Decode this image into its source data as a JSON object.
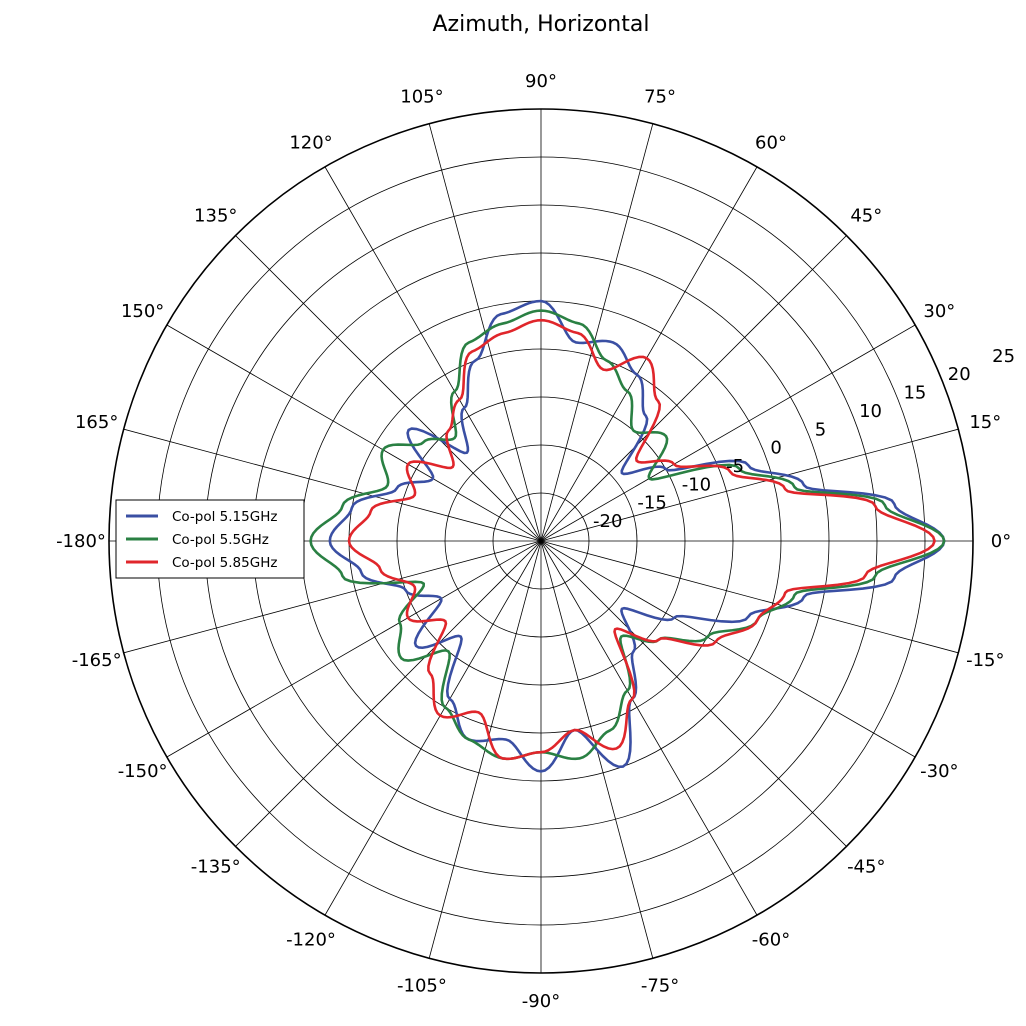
{
  "chart_data": {
    "type": "line",
    "subtype": "polar",
    "title": "Azimuth, Horizontal",
    "xlabel": "",
    "ylabel": "",
    "theta_unit": "degrees",
    "theta_ticks": [
      0,
      15,
      30,
      45,
      60,
      75,
      90,
      105,
      120,
      135,
      150,
      165,
      180,
      -165,
      -150,
      -135,
      -120,
      -105,
      -90,
      -75,
      -60,
      -45,
      -30,
      -15
    ],
    "theta_tick_labels": [
      "0°",
      "15°",
      "30°",
      "45°",
      "60°",
      "75°",
      "90°",
      "105°",
      "120°",
      "135°",
      "150°",
      "165°",
      "-180°",
      "-165°",
      "-150°",
      "-135°",
      "-120°",
      "-105°",
      "-90°",
      "-75°",
      "-60°",
      "-45°",
      "-30°",
      "-15°"
    ],
    "r_ticks": [
      -20,
      -15,
      -10,
      -5,
      0,
      5,
      10,
      15,
      20,
      25
    ],
    "r_tick_labels": [
      "-20",
      "-15",
      "-10",
      "-5",
      "0",
      "5",
      "10",
      "15",
      "20",
      "25"
    ],
    "rlim": [
      -25,
      20
    ],
    "r_grid_extra": [
      -25,
      -20,
      -15,
      -10,
      -5,
      0,
      5,
      10,
      15,
      20
    ],
    "r_label_angle": 22.5,
    "grid": true,
    "legend_position": "left",
    "series": [
      {
        "name": "Co-pol 5.15GHz",
        "color": "#3a4fa3",
        "theta": [
          -180,
          -170,
          -160,
          -150,
          -140,
          -130,
          -120,
          -110,
          -100,
          -90,
          -80,
          -70,
          -60,
          -50,
          -40,
          -30,
          -20,
          -12,
          -6,
          0,
          6,
          12,
          20,
          30,
          40,
          50,
          60,
          70,
          80,
          90,
          100,
          110,
          120,
          130,
          140,
          150,
          160,
          170,
          180
        ],
        "r": [
          -3,
          -6,
          -10,
          -13,
          -8,
          -12,
          -6,
          -3,
          -4,
          -1,
          -5,
          0,
          -6,
          -10,
          -14,
          -9,
          -2,
          3,
          12,
          17,
          12,
          3,
          -2,
          -10,
          -14,
          -8,
          -5,
          -3,
          -4,
          0,
          -1,
          -5,
          -9,
          -13,
          -7,
          -12,
          -9,
          -5,
          -3
        ]
      },
      {
        "name": "Co-pol 5.5GHz",
        "color": "#2a8043",
        "theta": [
          -180,
          -170,
          -160,
          -150,
          -140,
          -130,
          -120,
          -110,
          -100,
          -90,
          -80,
          -70,
          -60,
          -50,
          -40,
          -30,
          -20,
          -12,
          -6,
          0,
          6,
          12,
          20,
          30,
          40,
          50,
          60,
          70,
          80,
          90,
          100,
          110,
          120,
          130,
          140,
          150,
          160,
          170,
          180
        ],
        "r": [
          -1,
          -4,
          -12,
          -8,
          -6,
          -10,
          -5,
          -3,
          -2,
          -3,
          -2,
          -4,
          -7,
          -12,
          -9,
          -5,
          -1,
          2,
          10,
          17,
          11,
          2,
          -3,
          -12,
          -8,
          -10,
          -7,
          -5,
          -2,
          -1,
          -2,
          -3,
          -7,
          -11,
          -9,
          -6,
          -8,
          -4,
          -1
        ]
      },
      {
        "name": "Co-pol 5.85GHz",
        "color": "#e0262b",
        "theta": [
          -180,
          -170,
          -160,
          -150,
          -140,
          -130,
          -120,
          -110,
          -100,
          -90,
          -80,
          -70,
          -60,
          -50,
          -40,
          -30,
          -20,
          -12,
          -6,
          0,
          6,
          12,
          20,
          30,
          40,
          50,
          60,
          70,
          80,
          90,
          100,
          110,
          120,
          130,
          140,
          150,
          160,
          170,
          180
        ],
        "r": [
          -5,
          -8,
          -11,
          -9,
          -12,
          -7,
          -4,
          -6,
          -2,
          -3,
          -5,
          -2,
          -6,
          -13,
          -9,
          -4,
          -1,
          1,
          9,
          16,
          10,
          1,
          -4,
          -9,
          -12,
          -6,
          -3,
          -6,
          -3,
          -2,
          -3,
          -4,
          -8,
          -10,
          -13,
          -9,
          -11,
          -7,
          -5
        ]
      }
    ]
  }
}
